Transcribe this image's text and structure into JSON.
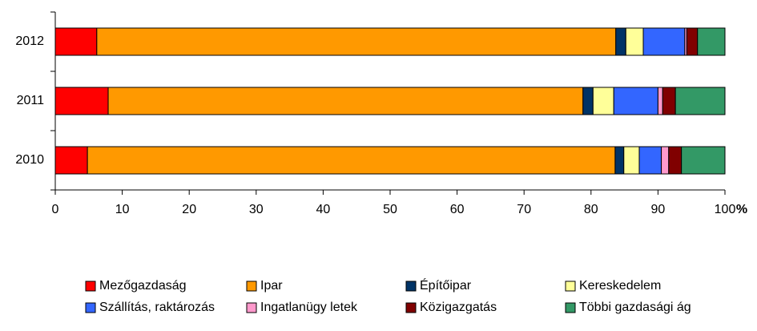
{
  "chart_data": {
    "type": "stacked-bar-horizontal",
    "categories": [
      "2012",
      "2011",
      "2010"
    ],
    "series": [
      {
        "name": "Mezőgazdaság",
        "color": "#ff0000",
        "values": [
          6.2,
          7.9,
          4.8
        ]
      },
      {
        "name": "Ipar",
        "color": "#ff9900",
        "values": [
          77.5,
          70.9,
          78.8
        ]
      },
      {
        "name": "Építőipar",
        "color": "#003366",
        "values": [
          1.5,
          1.5,
          1.3
        ]
      },
      {
        "name": "Kereskedelem",
        "color": "#ffff99",
        "values": [
          2.6,
          3.1,
          2.3
        ]
      },
      {
        "name": "Szállítás, raktározás",
        "color": "#3366ff",
        "values": [
          6.2,
          6.6,
          3.3
        ]
      },
      {
        "name": "Ingatlanügy letek",
        "color": "#ff99cc",
        "values": [
          0.3,
          0.7,
          1.1
        ]
      },
      {
        "name": "Közigazgatás",
        "color": "#800000",
        "values": [
          1.6,
          1.9,
          1.9
        ]
      },
      {
        "name": "Többi gazdasági ág",
        "color": "#339966",
        "values": [
          4.1,
          7.4,
          6.5
        ]
      }
    ],
    "xlim": [
      0,
      100
    ],
    "xticks": [
      0,
      10,
      20,
      30,
      40,
      50,
      60,
      70,
      80,
      90,
      100
    ],
    "x_unit": "%"
  }
}
